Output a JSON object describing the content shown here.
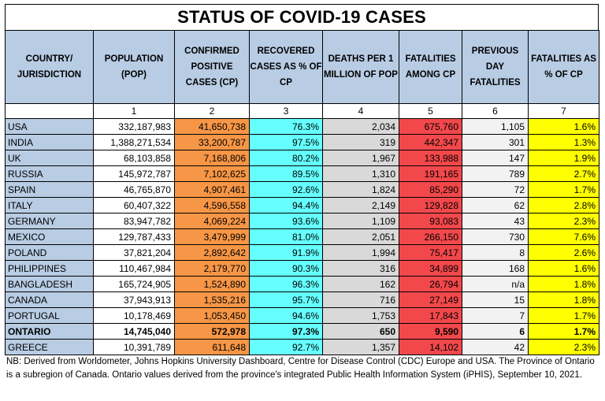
{
  "title": "STATUS OF COVID-19 CASES",
  "headers": [
    "COUNTRY/ JURISDICTION",
    "POPULATION (POP)",
    "CONFIRMED POSITIVE CASES (CP)",
    "RECOVERED CASES AS % OF CP",
    "DEATHS PER 1 MILLION OF POP",
    "FATALITIES AMONG CP",
    "PREVIOUS DAY FATALITIES",
    "FATALITIES AS % OF CP"
  ],
  "column_numbers": [
    "",
    "1",
    "2",
    "3",
    "4",
    "5",
    "6",
    "7"
  ],
  "rows": [
    {
      "country": "USA",
      "pop": "332,187,983",
      "cp": "41,650,738",
      "rec": "76.3%",
      "dpm": "2,034",
      "fat": "675,760",
      "prev": "1,105",
      "pct": "1.6%"
    },
    {
      "country": "INDIA",
      "pop": "1,388,271,534",
      "cp": "33,200,787",
      "rec": "97.5%",
      "dpm": "319",
      "fat": "442,347",
      "prev": "301",
      "pct": "1.3%"
    },
    {
      "country": "UK",
      "pop": "68,103,858",
      "cp": "7,168,806",
      "rec": "80.2%",
      "dpm": "1,967",
      "fat": "133,988",
      "prev": "147",
      "pct": "1.9%"
    },
    {
      "country": "RUSSIA",
      "pop": "145,972,787",
      "cp": "7,102,625",
      "rec": "89.5%",
      "dpm": "1,310",
      "fat": "191,165",
      "prev": "789",
      "pct": "2.7%"
    },
    {
      "country": "SPAIN",
      "pop": "46,765,870",
      "cp": "4,907,461",
      "rec": "92.6%",
      "dpm": "1,824",
      "fat": "85,290",
      "prev": "72",
      "pct": "1.7%"
    },
    {
      "country": "ITALY",
      "pop": "60,407,322",
      "cp": "4,596,558",
      "rec": "94.4%",
      "dpm": "2,149",
      "fat": "129,828",
      "prev": "62",
      "pct": "2.8%"
    },
    {
      "country": "GERMANY",
      "pop": "83,947,782",
      "cp": "4,069,224",
      "rec": "93.6%",
      "dpm": "1,109",
      "fat": "93,083",
      "prev": "43",
      "pct": "2.3%"
    },
    {
      "country": "MEXICO",
      "pop": "129,787,433",
      "cp": "3,479,999",
      "rec": "81.0%",
      "dpm": "2,051",
      "fat": "266,150",
      "prev": "730",
      "pct": "7.6%"
    },
    {
      "country": "POLAND",
      "pop": "37,821,204",
      "cp": "2,892,642",
      "rec": "91.9%",
      "dpm": "1,994",
      "fat": "75,417",
      "prev": "8",
      "pct": "2.6%"
    },
    {
      "country": "PHILIPPINES",
      "pop": "110,467,984",
      "cp": "2,179,770",
      "rec": "90.3%",
      "dpm": "316",
      "fat": "34,899",
      "prev": "168",
      "pct": "1.6%"
    },
    {
      "country": "BANGLADESH",
      "pop": "165,724,905",
      "cp": "1,524,890",
      "rec": "96.3%",
      "dpm": "162",
      "fat": "26,794",
      "prev": "n/a",
      "pct": "1.8%"
    },
    {
      "country": "CANADA",
      "pop": "37,943,913",
      "cp": "1,535,216",
      "rec": "95.7%",
      "dpm": "716",
      "fat": "27,149",
      "prev": "15",
      "pct": "1.8%"
    },
    {
      "country": "PORTUGAL",
      "pop": "10,178,469",
      "cp": "1,053,450",
      "rec": "94.6%",
      "dpm": "1,753",
      "fat": "17,843",
      "prev": "7",
      "pct": "1.7%"
    },
    {
      "country": "ONTARIO",
      "pop": "14,745,040",
      "cp": "572,978",
      "rec": "97.3%",
      "dpm": "650",
      "fat": "9,590",
      "prev": "6",
      "pct": "1.7%",
      "bold": true
    },
    {
      "country": "GREECE",
      "pop": "10,391,789",
      "cp": "611,648",
      "rec": "92.7%",
      "dpm": "1,357",
      "fat": "14,102",
      "prev": "42",
      "pct": "2.3%"
    }
  ],
  "note": "NB: Derived from Worldometer, Johns Hopkins University Dashboard, Centre for Disease Control (CDC) Europe and USA. The Province of Ontario is a subregion of Canada. Ontario values derived from the province's integrated Public Health Information System (iPHIS), September 10, 2021.",
  "colors": {
    "header_blue": "#b8cce4",
    "cases_orange": "#f79646",
    "recovered_cyan": "#66ffff",
    "deaths_gray": "#d9d9d9",
    "fatalities_red": "#f2484b",
    "previous_lightgray": "#f2f2f2",
    "percent_yellow": "#ffff00"
  }
}
